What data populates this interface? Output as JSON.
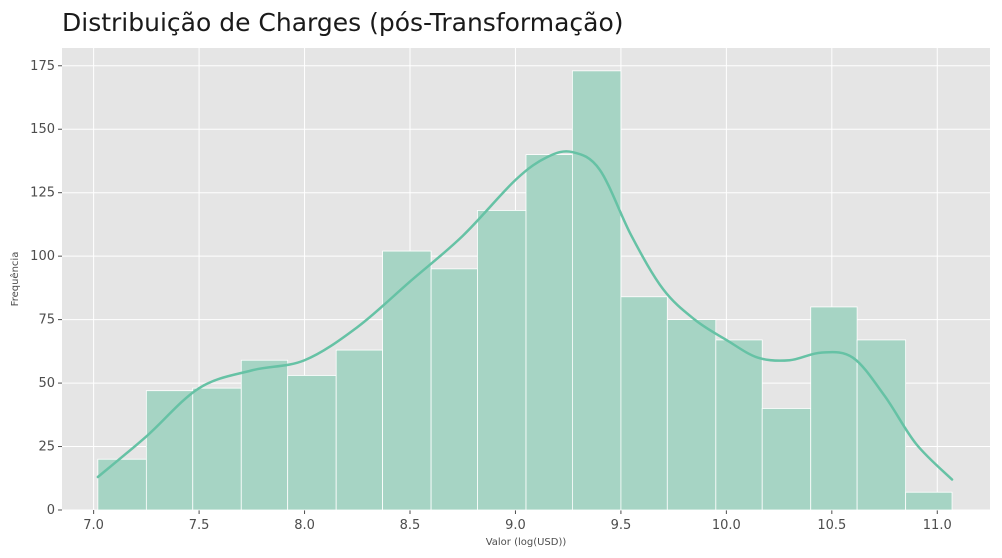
{
  "chart_data": {
    "type": "bar",
    "title": "Distribuição de Charges (pós-Transformação)",
    "xlabel": "Valor (log(USD))",
    "ylabel": "Frequência",
    "xlim": [
      6.85,
      11.25
    ],
    "ylim": [
      0,
      182
    ],
    "xticks": [
      "7.0",
      "7.5",
      "8.0",
      "8.5",
      "9.0",
      "9.5",
      "10.0",
      "10.5",
      "11.0"
    ],
    "yticks": [
      "0",
      "25",
      "50",
      "75",
      "100",
      "125",
      "150",
      "175"
    ],
    "grid": true,
    "bar_color": "#a6d4c4",
    "line_color": "#66c2a5",
    "background": "#e5e5e5",
    "bins": [
      {
        "x0": 7.02,
        "x1": 7.25,
        "count": 20
      },
      {
        "x0": 7.25,
        "x1": 7.47,
        "count": 47
      },
      {
        "x0": 7.47,
        "x1": 7.7,
        "count": 48
      },
      {
        "x0": 7.7,
        "x1": 7.92,
        "count": 59
      },
      {
        "x0": 7.92,
        "x1": 8.15,
        "count": 53
      },
      {
        "x0": 8.15,
        "x1": 8.37,
        "count": 63
      },
      {
        "x0": 8.37,
        "x1": 8.6,
        "count": 102
      },
      {
        "x0": 8.6,
        "x1": 8.82,
        "count": 95
      },
      {
        "x0": 8.82,
        "x1": 9.05,
        "count": 118
      },
      {
        "x0": 9.05,
        "x1": 9.27,
        "count": 140
      },
      {
        "x0": 9.27,
        "x1": 9.5,
        "count": 173
      },
      {
        "x0": 9.5,
        "x1": 9.72,
        "count": 84
      },
      {
        "x0": 9.72,
        "x1": 9.95,
        "count": 75
      },
      {
        "x0": 9.95,
        "x1": 10.17,
        "count": 67
      },
      {
        "x0": 10.17,
        "x1": 10.4,
        "count": 40
      },
      {
        "x0": 10.4,
        "x1": 10.62,
        "count": 80
      },
      {
        "x0": 10.62,
        "x1": 10.85,
        "count": 67
      },
      {
        "x0": 10.85,
        "x1": 11.07,
        "count": 7
      }
    ],
    "kde": {
      "x": [
        7.02,
        7.25,
        7.5,
        7.75,
        8.0,
        8.25,
        8.5,
        8.75,
        9.0,
        9.15,
        9.27,
        9.4,
        9.55,
        9.7,
        9.85,
        10.0,
        10.15,
        10.3,
        10.45,
        10.6,
        10.75,
        10.9,
        11.07
      ],
      "y": [
        13,
        29,
        48,
        55,
        59,
        72,
        90,
        108,
        130,
        139,
        141,
        134,
        108,
        87,
        75,
        67,
        60,
        59,
        62,
        60,
        45,
        26,
        12
      ]
    }
  }
}
